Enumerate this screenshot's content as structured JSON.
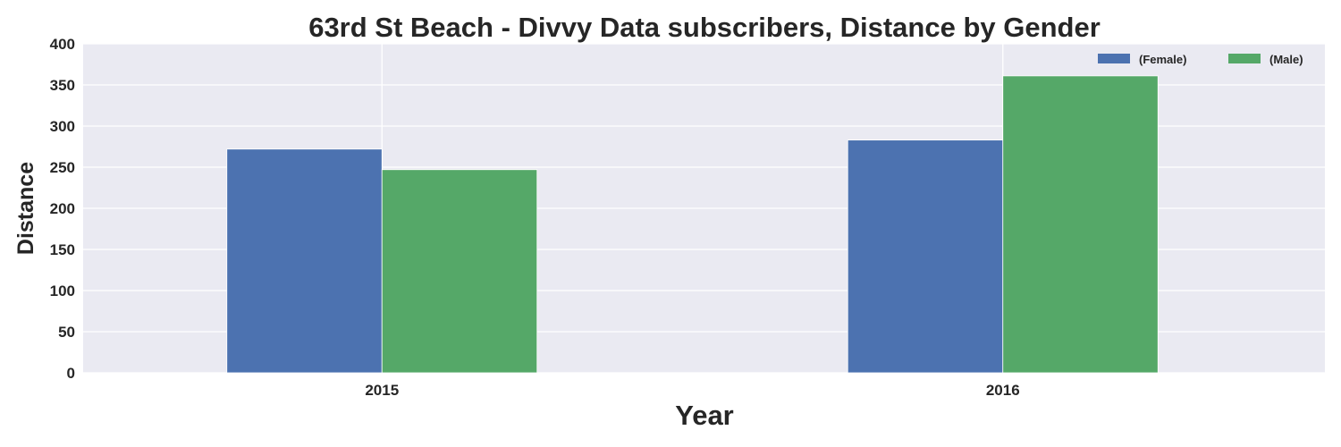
{
  "chart_data": {
    "type": "bar",
    "title": "63rd St Beach - Divvy Data subscribers, Distance by Gender",
    "xlabel": "Year",
    "ylabel": "Distance",
    "categories": [
      "2015",
      "2016"
    ],
    "series": [
      {
        "name": "(Female)",
        "values": [
          272,
          283
        ],
        "color": "#4c72b0"
      },
      {
        "name": "(Male)",
        "values": [
          247,
          361
        ],
        "color": "#55a868"
      }
    ],
    "ylim": [
      0,
      400
    ],
    "yticks": [
      0,
      50,
      100,
      150,
      200,
      250,
      300,
      350,
      400
    ],
    "grid": true,
    "legend_position": "top-right",
    "background_color": "#eaeaf2"
  }
}
